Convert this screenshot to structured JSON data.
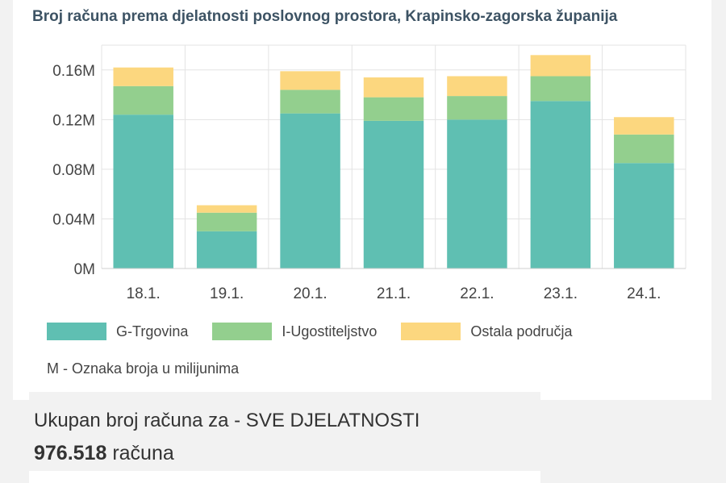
{
  "chart_data": {
    "type": "bar",
    "stacked": true,
    "title": "Broj računa prema djelatnosti poslovnog prostora, Krapinsko-zagorska županija",
    "categories": [
      "18.1.",
      "19.1.",
      "20.1.",
      "21.1.",
      "22.1.",
      "23.1.",
      "24.1."
    ],
    "series": [
      {
        "name": "G-Trgovina",
        "color": "#5fbfb2",
        "values": [
          0.124,
          0.03,
          0.125,
          0.119,
          0.12,
          0.135,
          0.085
        ]
      },
      {
        "name": "I-Ugostiteljstvo",
        "color": "#93cf8e",
        "values": [
          0.023,
          0.015,
          0.019,
          0.019,
          0.019,
          0.02,
          0.023
        ]
      },
      {
        "name": "Ostala područja",
        "color": "#fcd77f",
        "values": [
          0.015,
          0.006,
          0.015,
          0.016,
          0.016,
          0.017,
          0.014
        ]
      }
    ],
    "yticks": [
      "0M",
      "0.04M",
      "0.08M",
      "0.12M",
      "0.16M"
    ],
    "ylim": [
      0,
      0.18
    ],
    "grid": true,
    "legend": "bottom-left"
  },
  "note": "M - Oznaka broja u milijunima",
  "summary": {
    "label": "Ukupan broj računa za - SVE DJELATNOSTI",
    "value": "976.518",
    "unit": "računa"
  }
}
